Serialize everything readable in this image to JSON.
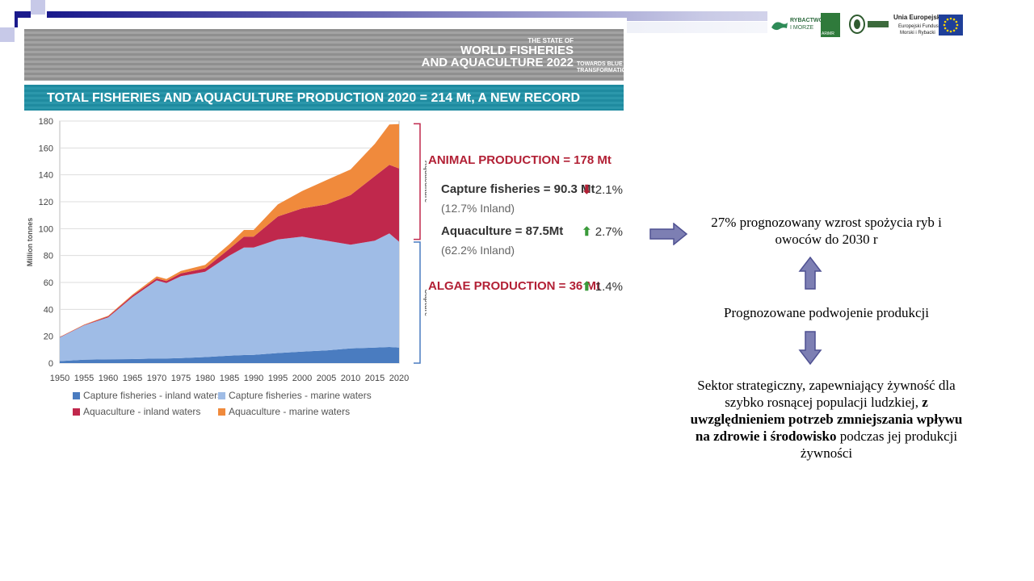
{
  "banner": {
    "line1": "THE STATE OF",
    "line2": "WORLD FISHERIES",
    "line3": "AND AQUACULTURE 2022",
    "tagline": "TOWARDS BLUE TRANSFORMATION"
  },
  "chart_title": "TOTAL FISHERIES AND AQUACULTURE PRODUCTION 2020 = 214 Mt, A NEW RECORD",
  "stats": {
    "animal": "ANIMAL PRODUCTION = 178 Mt",
    "capture_label": "Capture fisheries = 90.3 Mt",
    "capture_change": "2.1%",
    "capture_note": "(12.7% Inland)",
    "aquaculture_label": "Aquaculture = 87.5Mt",
    "aquaculture_change": "2.7%",
    "aquaculture_note": "(62.2% Inland)",
    "algae": "ALGAE PRODUCTION = 36 Mt",
    "algae_change": "1.4%"
  },
  "logos": {
    "rybactwo_line1": "RYBACTWO",
    "rybactwo_line2": "I MORZE",
    "arimr": "ARiMR",
    "eu_title": "Unia Europejska",
    "eu_line1": "Europejski Fundusz",
    "eu_line2": "Morski i Rybacki"
  },
  "right_text": {
    "t1": "27% prognozowany wzrost spożycia ryb i owoców do 2030 r",
    "t2": "Prognozowane podwojenie produkcji",
    "t3_part1": "Sektor strategiczny, zapewniający żywność dla szybko rosnącej populacji ludzkiej, ",
    "t3_bold": "z uwzględnieniem potrzeb zmniejszania wpływu na zdrowie i środowisko",
    "t3_part2": " podczas jej  produkcji żywności"
  },
  "colors": {
    "capture_inland": "#4a7cc0",
    "capture_marine": "#9fbce6",
    "aqua_inland": "#c0284c",
    "aqua_marine": "#f08a3c",
    "arrow_fill": "#7d7fb3"
  },
  "chart_data": {
    "type": "area",
    "title": "TOTAL FISHERIES AND AQUACULTURE PRODUCTION 2020 = 214 Mt, A NEW RECORD",
    "xlabel": "",
    "ylabel": "Million tonnes",
    "xlim": [
      1950,
      2020
    ],
    "ylim": [
      0,
      180
    ],
    "yticks": [
      0,
      20,
      40,
      60,
      80,
      100,
      120,
      140,
      160,
      180
    ],
    "xticks": [
      1950,
      1955,
      1960,
      1965,
      1970,
      1975,
      1980,
      1985,
      1990,
      1995,
      2000,
      2005,
      2010,
      2015,
      2020
    ],
    "grid": true,
    "legend": "bottom",
    "stacked": true,
    "x": [
      1950,
      1955,
      1960,
      1965,
      1970,
      1972,
      1975,
      1980,
      1985,
      1988,
      1990,
      1995,
      2000,
      2005,
      2010,
      2015,
      2018,
      2020
    ],
    "series": [
      {
        "name": "Capture fisheries - inland waters",
        "values": [
          1.5,
          2.5,
          2.8,
          3.0,
          3.5,
          3.5,
          3.7,
          4.5,
          5.5,
          6.0,
          6.2,
          7.5,
          8.5,
          9.5,
          11.0,
          11.5,
          12.0,
          11.5
        ]
      },
      {
        "name": "Capture fisheries - marine waters",
        "values": [
          17.5,
          25.5,
          31.2,
          46.0,
          58.0,
          56.0,
          61.0,
          63.5,
          74.5,
          80.0,
          79.8,
          84.5,
          85.5,
          81.5,
          77.0,
          79.5,
          84.5,
          78.8
        ]
      },
      {
        "name": "Aquaculture - inland waters",
        "values": [
          0.3,
          0.4,
          0.8,
          1.2,
          1.5,
          1.6,
          2.0,
          2.5,
          5.0,
          8.0,
          8.0,
          17.0,
          21.0,
          27.0,
          37.0,
          48.0,
          51.0,
          54.4
        ]
      },
      {
        "name": "Aquaculture - marine waters",
        "values": [
          0.2,
          0.3,
          0.5,
          0.8,
          1.5,
          1.5,
          1.8,
          2.5,
          3.5,
          5.0,
          5.0,
          9.0,
          13.0,
          18.0,
          19.0,
          24.0,
          30.0,
          33.1
        ]
      }
    ],
    "annotations": [
      "Aquaculture",
      "Capture"
    ]
  }
}
